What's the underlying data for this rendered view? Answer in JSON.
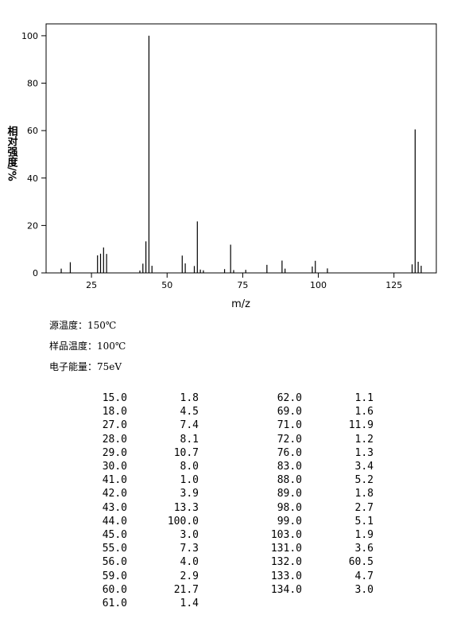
{
  "chart_data": {
    "type": "stick",
    "xlabel": "m/z",
    "ylabel": "相对强度/%",
    "x": [
      15,
      18,
      27,
      28,
      29,
      30,
      41,
      42,
      43,
      44,
      45,
      55,
      56,
      59,
      60,
      61,
      62,
      69,
      71,
      72,
      76,
      83,
      88,
      89,
      98,
      99,
      103,
      131,
      132,
      133,
      134
    ],
    "values": [
      1.8,
      4.5,
      7.4,
      8.1,
      10.7,
      8.0,
      1.0,
      3.9,
      13.3,
      100,
      3.0,
      7.3,
      4.0,
      2.9,
      21.7,
      1.4,
      1.1,
      1.6,
      11.9,
      1.2,
      1.3,
      3.4,
      5.2,
      1.8,
      2.7,
      5.1,
      1.9,
      3.6,
      60.5,
      4.7,
      3.0
    ],
    "color": "#000000",
    "xlim": [
      10,
      139
    ],
    "xticks": [
      25,
      50,
      75,
      100,
      125
    ],
    "ylim": [
      0,
      105
    ],
    "yticks": [
      0,
      20,
      40,
      60,
      80,
      100
    ]
  },
  "info": [
    "源温度：150℃",
    "样品温度：100℃",
    "电子能量：75eV"
  ],
  "table": {
    "left_rows": [
      [
        "15.0",
        "1.8"
      ],
      [
        "18.0",
        "4.5"
      ],
      [
        "27.0",
        "7.4"
      ],
      [
        "28.0",
        "8.1"
      ],
      [
        "29.0",
        "10.7"
      ],
      [
        "30.0",
        "8.0"
      ],
      [
        "41.0",
        "1.0"
      ],
      [
        "42.0",
        "3.9"
      ],
      [
        "43.0",
        "13.3"
      ],
      [
        "44.0",
        "100.0"
      ],
      [
        "45.0",
        "3.0"
      ],
      [
        "55.0",
        "7.3"
      ],
      [
        "56.0",
        "4.0"
      ],
      [
        "59.0",
        "2.9"
      ],
      [
        "60.0",
        "21.7"
      ],
      [
        "61.0",
        "1.4"
      ]
    ],
    "right_rows": [
      [
        "62.0",
        "1.1"
      ],
      [
        "69.0",
        "1.6"
      ],
      [
        "71.0",
        "11.9"
      ],
      [
        "72.0",
        "1.2"
      ],
      [
        "76.0",
        "1.3"
      ],
      [
        "83.0",
        "3.4"
      ],
      [
        "88.0",
        "5.2"
      ],
      [
        "89.0",
        "1.8"
      ],
      [
        "98.0",
        "2.7"
      ],
      [
        "99.0",
        "5.1"
      ],
      [
        "103.0",
        "1.9"
      ],
      [
        "131.0",
        "3.6"
      ],
      [
        "132.0",
        "60.5"
      ],
      [
        "133.0",
        "4.7"
      ],
      [
        "134.0",
        "3.0"
      ]
    ]
  }
}
